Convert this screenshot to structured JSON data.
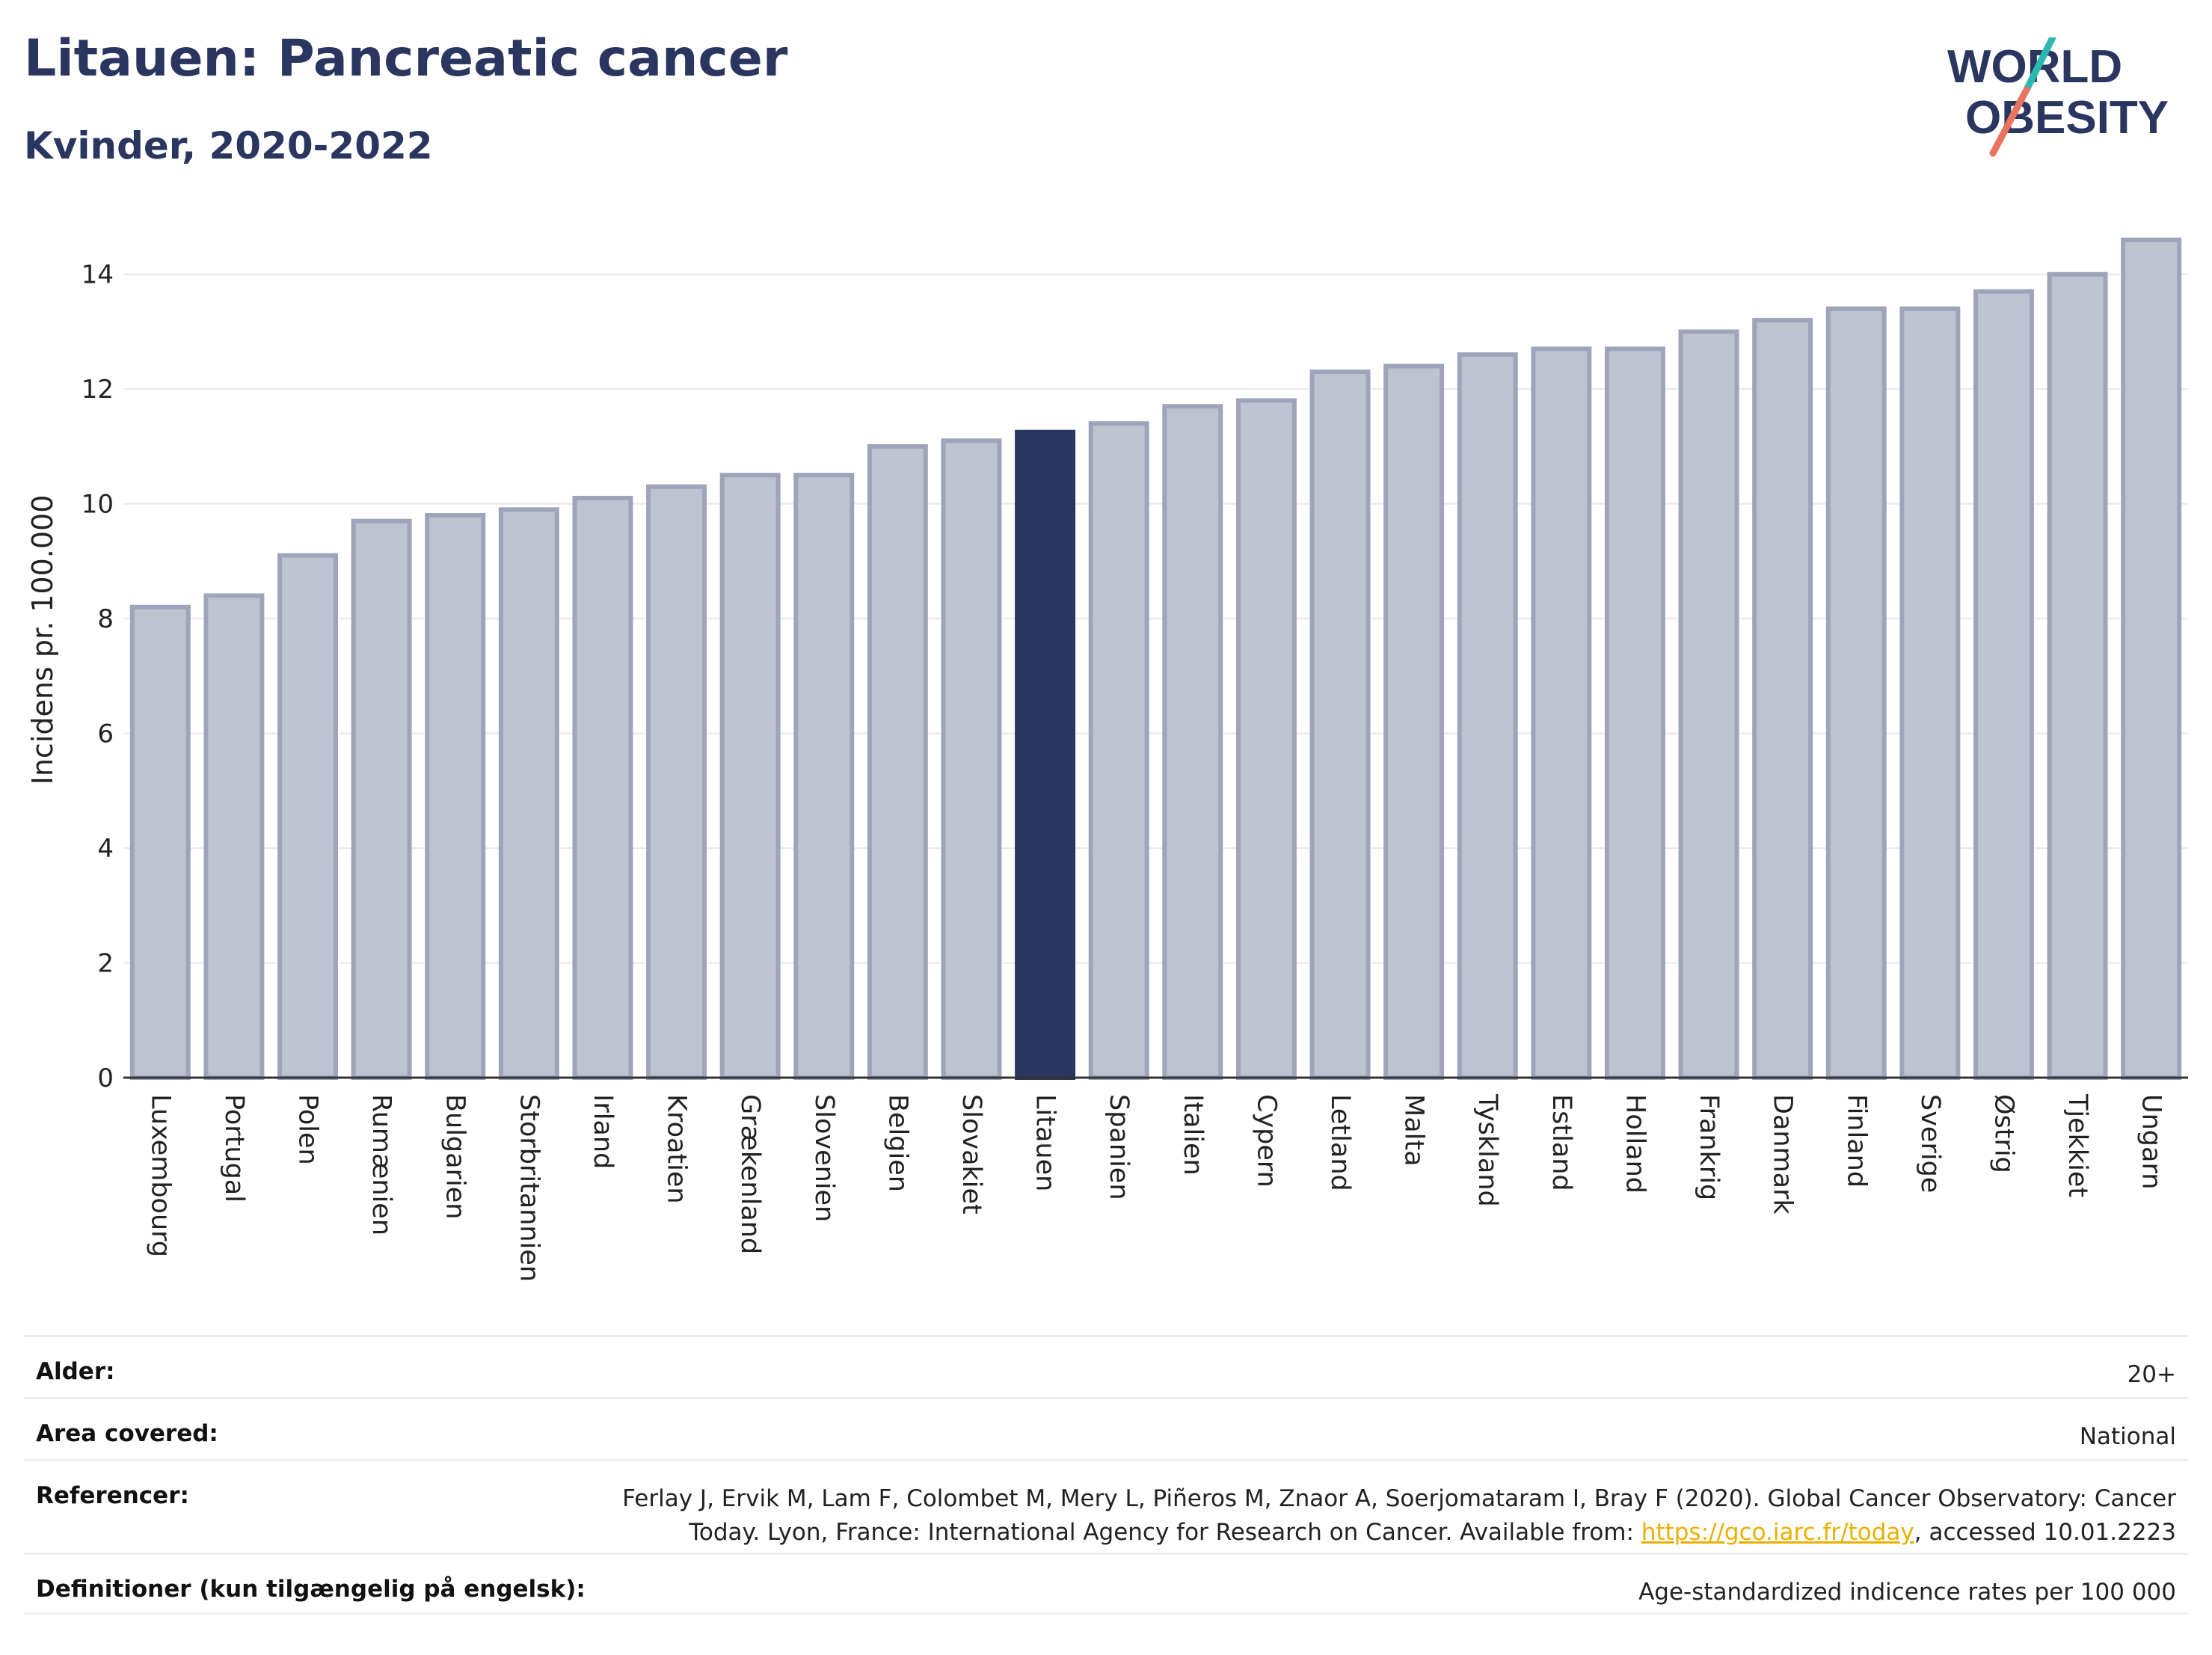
{
  "header": {
    "title": "Litauen: Pancreatic cancer",
    "subtitle": "Kvinder, 2020-2022"
  },
  "logo": {
    "line1": "WORLD",
    "line2": "OBESITY"
  },
  "colors": {
    "bar_fill": "#bfc3cf",
    "bar_stroke": "#9ea4ba",
    "highlight": "#2a3560",
    "text": "#2a3560",
    "grid": "#e6e8ee",
    "link": "#e9b000",
    "logo_teal": "#2bb8b0",
    "logo_coral": "#e9745f"
  },
  "chart_data": {
    "type": "bar",
    "title": "Litauen: Pancreatic cancer",
    "subtitle": "Kvinder, 2020-2022",
    "xlabel": "",
    "ylabel": "Incidens pr. 100.000",
    "ylim": [
      0,
      15
    ],
    "yticks": [
      0,
      2,
      4,
      6,
      8,
      10,
      12,
      14
    ],
    "grid": true,
    "highlight": "Litauen",
    "categories": [
      "Luxembourg",
      "Portugal",
      "Polen",
      "Rumænien",
      "Bulgarien",
      "Storbritannien",
      "Irland",
      "Kroatien",
      "Grækenland",
      "Slovenien",
      "Belgien",
      "Slovakiet",
      "Litauen",
      "Spanien",
      "Italien",
      "Cypern",
      "Letland",
      "Malta",
      "Tyskland",
      "Estland",
      "Holland",
      "Frankrig",
      "Danmark",
      "Finland",
      "Sverige",
      "Østrig",
      "Tjekkiet",
      "Ungarn"
    ],
    "values": [
      8.2,
      8.4,
      9.1,
      9.7,
      9.8,
      9.9,
      10.1,
      10.3,
      10.5,
      10.5,
      11.0,
      11.1,
      11.25,
      11.4,
      11.7,
      11.8,
      12.3,
      12.4,
      12.6,
      12.7,
      12.7,
      13.0,
      13.2,
      13.4,
      13.4,
      13.7,
      14.0,
      14.6
    ]
  },
  "meta": {
    "age_label": "Alder:",
    "age_value": "20+",
    "area_label": "Area covered:",
    "area_value": "National",
    "ref_label": "Referencer:",
    "ref_text_before": "Ferlay J, Ervik M, Lam F, Colombet M, Mery L, Piñeros M, Znaor A, Soerjomataram I, Bray F (2020). Global Cancer Observatory: Cancer Today. Lyon, France: International Agency for Research on Cancer. Available from: ",
    "ref_link": "https://gco.iarc.fr/today",
    "ref_text_after": ", accessed 10.01.2223",
    "def_label": "Definitioner (kun tilgængelig på engelsk):",
    "def_value": "Age-standardized indicence rates per 100 000"
  }
}
